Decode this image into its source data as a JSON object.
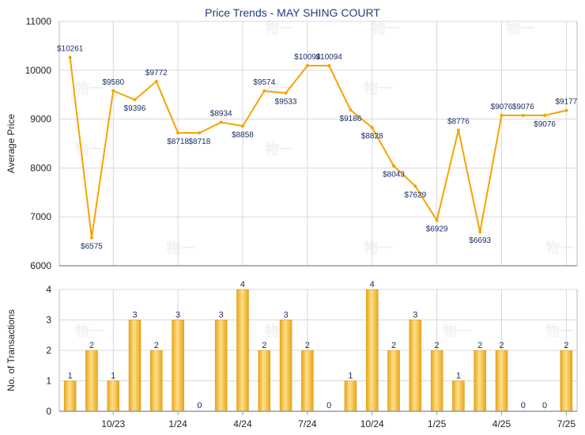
{
  "title": "Price Trends - MAY SHING COURT",
  "watermark": "物一",
  "colors": {
    "line": "#f5a300",
    "bar_light": "#ffe08a",
    "bar_dark": "#e9a417",
    "grid": "#d8d8d8",
    "label": "#1a2f66",
    "title": "#1f3f7a"
  },
  "chart_data": [
    {
      "type": "line",
      "ylabel": "Average Price",
      "ylim": [
        6000,
        11000
      ],
      "yticks": [
        6000,
        7000,
        8000,
        9000,
        10000,
        11000
      ],
      "values": [
        10261,
        6575,
        9580,
        9396,
        9772,
        8718,
        8718,
        8934,
        8858,
        9574,
        9533,
        10094,
        10094,
        9186,
        8828,
        8043,
        7629,
        6929,
        8776,
        6693,
        9076,
        9076,
        9076,
        9177
      ],
      "labels": [
        "$10261",
        "$6575",
        "$9580",
        "$9396",
        "$9772",
        "$8718",
        "$8718",
        "$8934",
        "$8858",
        "$9574",
        "$9533",
        "$10094",
        "$10094",
        "$9186",
        "$8828",
        "$8043",
        "$7629",
        "$6929",
        "$8776",
        "$6693",
        "$9076",
        "$9076",
        "$9076",
        "$9177"
      ],
      "grid": true
    },
    {
      "type": "bar",
      "ylabel": "No. of Transactions",
      "ylim": [
        0,
        4
      ],
      "yticks": [
        0,
        1,
        2,
        3,
        4
      ],
      "values": [
        1,
        2,
        1,
        3,
        2,
        3,
        0,
        3,
        4,
        2,
        3,
        2,
        0,
        1,
        4,
        2,
        3,
        2,
        1,
        2,
        2,
        0,
        0,
        2
      ],
      "x_ticks": [
        "10/23",
        "1/24",
        "4/24",
        "7/24",
        "10/24",
        "1/25",
        "4/25",
        "7/25"
      ],
      "grid": true
    }
  ]
}
